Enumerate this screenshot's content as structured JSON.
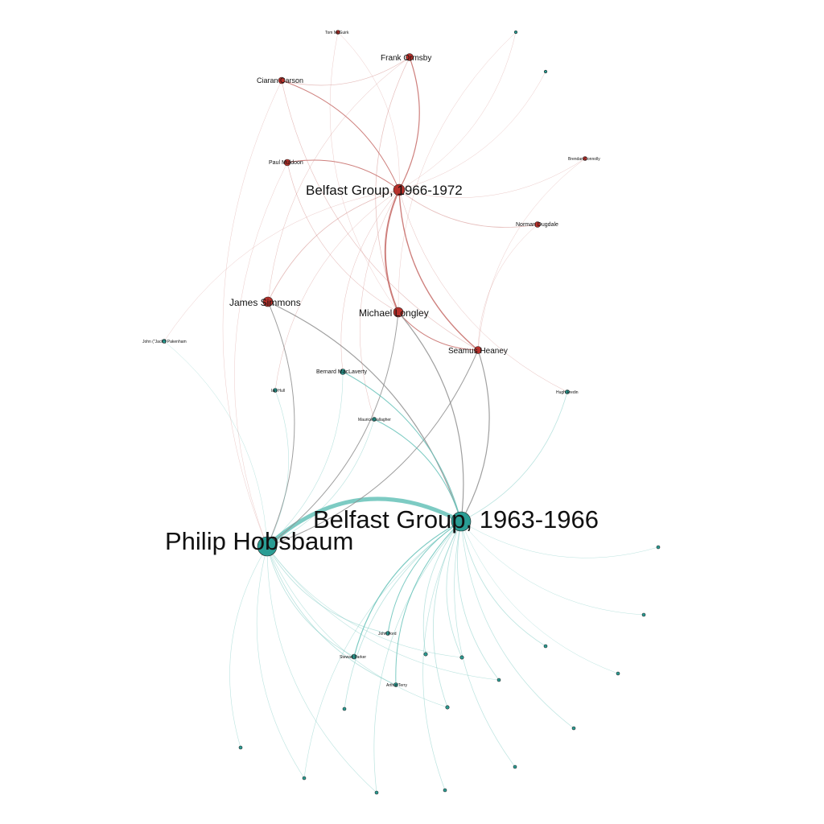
{
  "palette": {
    "red_node": "#b7302a",
    "teal_node": "#2a9d94",
    "red_edge": "#c66a66",
    "teal_edge": "#66c2b8",
    "gray_edge": "#8e8e8e",
    "background": "#ffffff"
  },
  "nodes": [
    {
      "id": "belfast_1963",
      "label": "Belfast Group, 1963-1966",
      "group": "teal"
    },
    {
      "id": "hobsbaum",
      "label": "Philip Hobsbaum",
      "group": "teal"
    },
    {
      "id": "belfast_1966",
      "label": "Belfast Group, 1966-1972",
      "group": "red"
    },
    {
      "id": "longley",
      "label": "Michael Longley",
      "group": "red"
    },
    {
      "id": "simmons",
      "label": "James Simmons",
      "group": "red"
    },
    {
      "id": "heaney",
      "label": "Seamus Heaney",
      "group": "red"
    },
    {
      "id": "ormsby",
      "label": "Frank Ormsby",
      "group": "red"
    },
    {
      "id": "carson",
      "label": "Ciaran Carson",
      "group": "red"
    },
    {
      "id": "muldoon",
      "label": "Paul Muldoon",
      "group": "red"
    },
    {
      "id": "dugdale",
      "label": "Norman Dugdale",
      "group": "red"
    },
    {
      "id": "mcguirk",
      "label": "Tom McGuirk",
      "group": "red"
    },
    {
      "id": "connolly",
      "label": "Brendan Connolly",
      "group": "red"
    },
    {
      "id": "maclaverty",
      "label": "Bernard MacLaverty",
      "group": "teal"
    },
    {
      "id": "hull",
      "label": "Ian Hull",
      "group": "teal"
    },
    {
      "id": "gallagher",
      "label": "Maurice Gallagher",
      "group": "teal"
    },
    {
      "id": "pakenham",
      "label": "John (\"Jack\") Pakenham",
      "group": "teal"
    },
    {
      "id": "fredin",
      "label": "Hugh Fredin",
      "group": "teal"
    },
    {
      "id": "n_top_right",
      "label": "",
      "group": "teal"
    },
    {
      "id": "n_top_right2",
      "label": "",
      "group": "teal"
    },
    {
      "id": "n_right1",
      "label": "",
      "group": "teal"
    },
    {
      "id": "n_right2",
      "label": "",
      "group": "teal"
    },
    {
      "id": "johnford",
      "label": "John Ford",
      "group": "teal"
    },
    {
      "id": "parker",
      "label": "Stewart Parker",
      "group": "teal"
    },
    {
      "id": "john_n",
      "label": "",
      "group": "teal"
    },
    {
      "id": "paulsmith",
      "label": "",
      "group": "teal"
    },
    {
      "id": "sullivan",
      "label": "",
      "group": "teal"
    },
    {
      "id": "eugene",
      "label": "",
      "group": "teal"
    },
    {
      "id": "arthur",
      "label": "Arthur Terry",
      "group": "teal"
    },
    {
      "id": "n_fraser",
      "label": "",
      "group": "teal"
    },
    {
      "id": "n_bottom_left1",
      "label": "",
      "group": "teal"
    },
    {
      "id": "n_bottom_mid",
      "label": "",
      "group": "teal"
    },
    {
      "id": "lynette",
      "label": "",
      "group": "teal"
    },
    {
      "id": "norman_b",
      "label": "",
      "group": "teal"
    },
    {
      "id": "johnston",
      "label": "",
      "group": "teal"
    },
    {
      "id": "n_bottom_right",
      "label": "",
      "group": "teal"
    },
    {
      "id": "plf",
      "label": "",
      "group": "teal"
    },
    {
      "id": "michael_b",
      "label": "",
      "group": "teal"
    }
  ],
  "edges": [
    {
      "s": "hobsbaum",
      "t": "belfast_1963",
      "w": 5,
      "color": "teal"
    },
    {
      "s": "belfast_1966",
      "t": "longley",
      "w": 2,
      "color": "red"
    },
    {
      "s": "belfast_1966",
      "t": "heaney",
      "w": 1.4,
      "color": "red"
    },
    {
      "s": "belfast_1966",
      "t": "ormsby",
      "w": 1.2,
      "color": "red"
    },
    {
      "s": "belfast_1966",
      "t": "carson",
      "w": 1,
      "color": "red"
    },
    {
      "s": "belfast_1966",
      "t": "muldoon",
      "w": 1,
      "color": "red"
    },
    {
      "s": "belfast_1966",
      "t": "dugdale",
      "w": 0.8,
      "color": "red"
    },
    {
      "s": "belfast_1966",
      "t": "simmons",
      "w": 0.8,
      "color": "red"
    },
    {
      "s": "carson",
      "t": "ormsby",
      "w": 0.7,
      "color": "red"
    },
    {
      "s": "carson",
      "t": "heaney",
      "w": 0.6,
      "color": "red"
    },
    {
      "s": "ormsby",
      "t": "longley",
      "w": 0.7,
      "color": "red"
    },
    {
      "s": "longley",
      "t": "heaney",
      "w": 1.0,
      "color": "red"
    },
    {
      "s": "muldoon",
      "t": "longley",
      "w": 0.6,
      "color": "red"
    },
    {
      "s": "belfast_1963",
      "t": "simmons",
      "w": 1.2,
      "color": "gray"
    },
    {
      "s": "belfast_1963",
      "t": "longley",
      "w": 1.2,
      "color": "gray"
    },
    {
      "s": "belfast_1963",
      "t": "heaney",
      "w": 1.2,
      "color": "gray"
    },
    {
      "s": "hobsbaum",
      "t": "simmons",
      "w": 1,
      "color": "gray"
    },
    {
      "s": "hobsbaum",
      "t": "longley",
      "w": 1,
      "color": "gray"
    },
    {
      "s": "hobsbaum",
      "t": "heaney",
      "w": 1,
      "color": "gray"
    },
    {
      "s": "belfast_1963",
      "t": "maclaverty",
      "w": 1,
      "color": "teal"
    },
    {
      "s": "belfast_1963",
      "t": "gallagher",
      "w": 1,
      "color": "teal"
    },
    {
      "s": "belfast_1963",
      "t": "fredin",
      "w": 0.8,
      "color": "teal"
    },
    {
      "s": "belfast_1963",
      "t": "johnford",
      "w": 1,
      "color": "teal"
    },
    {
      "s": "belfast_1963",
      "t": "parker",
      "w": 1.2,
      "color": "teal"
    },
    {
      "s": "belfast_1963",
      "t": "john_n",
      "w": 0.8,
      "color": "teal"
    },
    {
      "s": "belfast_1963",
      "t": "paulsmith",
      "w": 0.8,
      "color": "teal"
    },
    {
      "s": "belfast_1963",
      "t": "sullivan",
      "w": 0.8,
      "color": "teal"
    },
    {
      "s": "belfast_1963",
      "t": "eugene",
      "w": 0.8,
      "color": "teal"
    },
    {
      "s": "belfast_1963",
      "t": "arthur",
      "w": 1,
      "color": "teal"
    },
    {
      "s": "belfast_1963",
      "t": "n_bottom_left1",
      "w": 0.8,
      "color": "teal"
    },
    {
      "s": "belfast_1963",
      "t": "n_bottom_mid",
      "w": 0.8,
      "color": "teal"
    },
    {
      "s": "belfast_1963",
      "t": "lynette",
      "w": 0.7,
      "color": "teal"
    },
    {
      "s": "belfast_1963",
      "t": "n_bottom_right",
      "w": 0.7,
      "color": "teal"
    },
    {
      "s": "belfast_1963",
      "t": "michael_b",
      "w": 0.7,
      "color": "teal"
    },
    {
      "s": "belfast_1963",
      "t": "plf",
      "w": 0.7,
      "color": "teal"
    },
    {
      "s": "belfast_1963",
      "t": "n_right1",
      "w": 0.5,
      "color": "teal"
    },
    {
      "s": "belfast_1963",
      "t": "n_right2",
      "w": 0.5,
      "color": "teal"
    },
    {
      "s": "belfast_1963",
      "t": "n_fraser",
      "w": 0.5,
      "color": "teal"
    },
    {
      "s": "belfast_1963",
      "t": "johnston",
      "w": 0.6,
      "color": "teal"
    },
    {
      "s": "hobsbaum",
      "t": "parker",
      "w": 0.8,
      "color": "teal"
    },
    {
      "s": "hobsbaum",
      "t": "johnford",
      "w": 0.8,
      "color": "teal"
    },
    {
      "s": "hobsbaum",
      "t": "arthur",
      "w": 0.8,
      "color": "teal"
    },
    {
      "s": "hobsbaum",
      "t": "norman_b",
      "w": 0.6,
      "color": "teal"
    },
    {
      "s": "hobsbaum",
      "t": "johnston",
      "w": 0.6,
      "color": "teal"
    },
    {
      "s": "hobsbaum",
      "t": "plf",
      "w": 0.6,
      "color": "teal"
    },
    {
      "s": "hobsbaum",
      "t": "n_bottom_mid",
      "w": 0.6,
      "color": "teal"
    },
    {
      "s": "hobsbaum",
      "t": "eugene",
      "w": 0.6,
      "color": "teal"
    },
    {
      "s": "hobsbaum",
      "t": "paulsmith",
      "w": 0.6,
      "color": "teal"
    },
    {
      "s": "hobsbaum",
      "t": "maclaverty",
      "w": 0.6,
      "color": "teal"
    },
    {
      "s": "hobsbaum",
      "t": "gallagher",
      "w": 0.6,
      "color": "teal"
    },
    {
      "s": "hobsbaum",
      "t": "hull",
      "w": 0.6,
      "color": "teal"
    },
    {
      "s": "hobsbaum",
      "t": "pakenham",
      "w": 0.5,
      "color": "teal"
    },
    {
      "s": "belfast_1966",
      "t": "pakenham",
      "w": 0.4,
      "color": "red"
    },
    {
      "s": "belfast_1966",
      "t": "connolly",
      "w": 0.4,
      "color": "red"
    },
    {
      "s": "belfast_1966",
      "t": "mcguirk",
      "w": 0.4,
      "color": "red"
    },
    {
      "s": "belfast_1966",
      "t": "n_top_right",
      "w": 0.4,
      "color": "red"
    },
    {
      "s": "belfast_1966",
      "t": "n_top_right2",
      "w": 0.4,
      "color": "red"
    },
    {
      "s": "belfast_1966",
      "t": "hull",
      "w": 0.5,
      "color": "red"
    },
    {
      "s": "belfast_1966",
      "t": "maclaverty",
      "w": 0.5,
      "color": "red"
    },
    {
      "s": "belfast_1966",
      "t": "gallagher",
      "w": 0.5,
      "color": "red"
    },
    {
      "s": "belfast_1966",
      "t": "fredin",
      "w": 0.5,
      "color": "red"
    },
    {
      "s": "mcguirk",
      "t": "longley",
      "w": 0.4,
      "color": "red"
    },
    {
      "s": "connolly",
      "t": "heaney",
      "w": 0.4,
      "color": "red"
    },
    {
      "s": "dugdale",
      "t": "heaney",
      "w": 0.4,
      "color": "red"
    },
    {
      "s": "n_top_right",
      "t": "longley",
      "w": 0.4,
      "color": "red"
    },
    {
      "s": "carson",
      "t": "hobsbaum",
      "w": 0.4,
      "color": "red"
    },
    {
      "s": "muldoon",
      "t": "hobsbaum",
      "w": 0.4,
      "color": "red"
    },
    {
      "s": "ormsby",
      "t": "simmons",
      "w": 0.5,
      "color": "red"
    }
  ]
}
